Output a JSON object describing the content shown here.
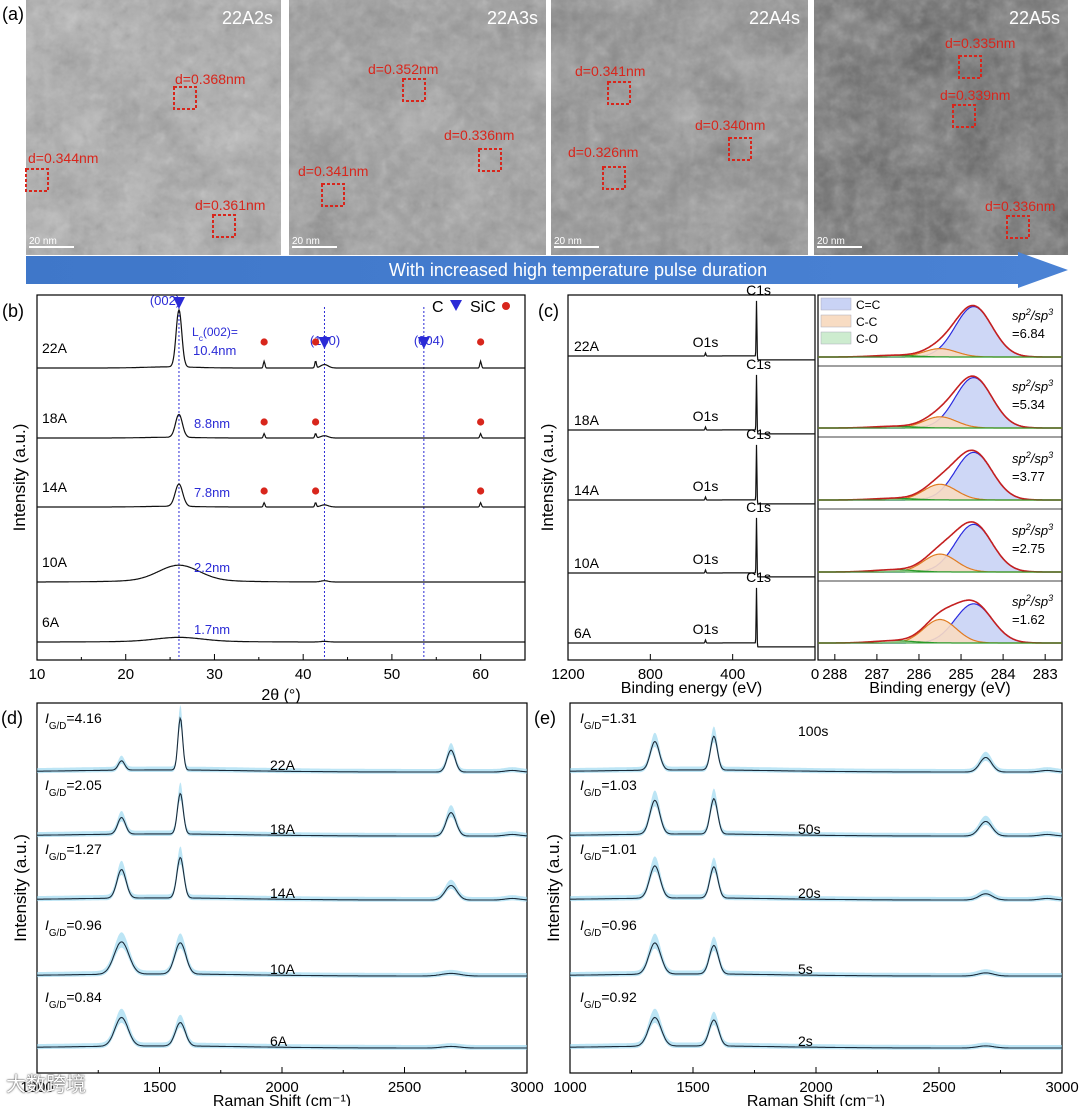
{
  "panel_a": {
    "label": "(a)",
    "arrow_text": "With increased high temperature pulse duration",
    "images": [
      {
        "title": "22A2s",
        "scale": "20 nm",
        "spacings": [
          "d=0.368nm",
          "d=0.344nm",
          "d=0.361nm"
        ]
      },
      {
        "title": "22A3s",
        "scale": "20 nm",
        "spacings": [
          "d=0.352nm",
          "d=0.336nm",
          "d=0.341nm"
        ]
      },
      {
        "title": "22A4s",
        "scale": "20 nm",
        "spacings": [
          "d=0.341nm",
          "d=0.340nm",
          "d=0.326nm"
        ]
      },
      {
        "title": "22A5s",
        "scale": "20 nm",
        "spacings": [
          "d=0.335nm",
          "d=0.339nm",
          "d=0.336nm"
        ]
      }
    ]
  },
  "chart_data": [
    {
      "panel": "(b)",
      "type": "line",
      "xlabel": "2θ (°)",
      "ylabel": "Intensity (a.u.)",
      "xlim": [
        10,
        65
      ],
      "xticks": [
        "10",
        "20",
        "30",
        "40",
        "50",
        "60"
      ],
      "legend": {
        "c_label": "C",
        "sic_label": "SiC",
        "position": "top-right"
      },
      "peak_labels": [
        "(002)",
        "(100)",
        "(004)"
      ],
      "peak_positions": [
        26.0,
        42.4,
        53.6
      ],
      "lc_label": "Lₑ(002)=",
      "lc_label_sub": "c",
      "lc_label_main": "L",
      "lc_label_tail": "(002)=",
      "sic_positions": [
        35.6,
        41.4,
        60.0
      ],
      "series": [
        {
          "name": "22A",
          "lc": "10.4nm",
          "height": 1.0,
          "width": 0.45,
          "sic": [
            35.6,
            41.4,
            60.0
          ]
        },
        {
          "name": "18A",
          "lc": "8.8nm",
          "height": 0.62,
          "width": 0.55,
          "sic": [
            35.6,
            41.4,
            60.0
          ]
        },
        {
          "name": "14A",
          "lc": "7.8nm",
          "height": 0.62,
          "width": 0.6,
          "sic": [
            35.6,
            41.4,
            60.0
          ]
        },
        {
          "name": "10A",
          "lc": "2.2nm",
          "height": 0.18,
          "width": 3.2,
          "sic": []
        },
        {
          "name": "6A",
          "lc": "1.7nm",
          "height": 0.09,
          "width": 3.6,
          "sic": []
        }
      ]
    },
    {
      "panel": "(c)",
      "type": "line",
      "xlabel": "Binding energy (eV)",
      "ylabel": "Intensity (a.u.)",
      "xlim": [
        1200,
        0
      ],
      "xticks": [
        "1200",
        "800",
        "400",
        "0"
      ],
      "peaks": [
        "C1s",
        "O1s"
      ],
      "series": [
        {
          "name": "22A"
        },
        {
          "name": "18A"
        },
        {
          "name": "14A"
        },
        {
          "name": "10A"
        },
        {
          "name": "6A"
        }
      ]
    },
    {
      "panel": "(c) right",
      "type": "area",
      "xlabel": "Binding energy (eV)",
      "xlim": [
        288.4,
        282.6
      ],
      "xticks": [
        "288",
        "287",
        "286",
        "285",
        "284",
        "283"
      ],
      "legend": [
        {
          "name": "C=C",
          "color": "#c9d3f5"
        },
        {
          "name": "C-C",
          "color": "#f8dcc3"
        },
        {
          "name": "C-O",
          "color": "#cdeccf"
        }
      ],
      "ratio_label": "sp²/sp³",
      "series": [
        {
          "ratio": "=6.84",
          "cc": 0.9,
          "ccsp3": 0.15,
          "co": 0.03
        },
        {
          "ratio": "=5.34",
          "cc": 0.9,
          "ccsp3": 0.2,
          "co": 0.03
        },
        {
          "ratio": "=3.77",
          "cc": 0.85,
          "ccsp3": 0.28,
          "co": 0.03
        },
        {
          "ratio": "=2.75",
          "cc": 0.85,
          "ccsp3": 0.32,
          "co": 0.04
        },
        {
          "ratio": "=1.62",
          "cc": 0.7,
          "ccsp3": 0.42,
          "co": 0.04
        }
      ]
    },
    {
      "panel": "(d)",
      "type": "line",
      "xlabel": "Raman Shift (cm⁻¹)",
      "ylabel": "Intensity (a.u.)",
      "xlim": [
        1000,
        3000
      ],
      "xticks": [
        "1000",
        "1500",
        "2000",
        "2500",
        "3000"
      ],
      "series": [
        {
          "name": "22A",
          "igd": "=4.16",
          "d": 0.18,
          "g": 1.0,
          "g2d": 0.42,
          "w": 18
        },
        {
          "name": "18A",
          "igd": "=2.05",
          "d": 0.32,
          "g": 0.78,
          "g2d": 0.45,
          "w": 22
        },
        {
          "name": "14A",
          "igd": "=1.27",
          "d": 0.55,
          "g": 0.78,
          "g2d": 0.28,
          "w": 26
        },
        {
          "name": "10A",
          "igd": "=0.96",
          "d": 0.62,
          "g": 0.6,
          "g2d": 0.05,
          "w": 42
        },
        {
          "name": "6A",
          "igd": "=0.84",
          "d": 0.55,
          "g": 0.45,
          "g2d": 0.03,
          "w": 38
        }
      ]
    },
    {
      "panel": "(e)",
      "type": "line",
      "xlabel": "Raman Shift (cm⁻¹)",
      "ylabel": "Intensity (a.u.)",
      "xlim": [
        1000,
        3000
      ],
      "xticks": [
        "1000",
        "1500",
        "2000",
        "2500",
        "3000"
      ],
      "series": [
        {
          "name": "100s",
          "igd": "=1.31",
          "d": 0.55,
          "g": 0.65,
          "g2d": 0.28,
          "w": 26
        },
        {
          "name": "50s",
          "igd": "=1.03",
          "d": 0.65,
          "g": 0.68,
          "g2d": 0.28,
          "w": 28
        },
        {
          "name": "20s",
          "igd": "=1.01",
          "d": 0.62,
          "g": 0.6,
          "g2d": 0.12,
          "w": 30
        },
        {
          "name": "5s",
          "igd": "=0.96",
          "d": 0.6,
          "g": 0.55,
          "g2d": 0.06,
          "w": 34
        },
        {
          "name": "2s",
          "igd": "=0.92",
          "d": 0.55,
          "g": 0.5,
          "g2d": 0.04,
          "w": 36
        }
      ]
    }
  ],
  "igd_prefix": "I",
  "igd_sub": "G/D",
  "watermark": "大数跨境"
}
